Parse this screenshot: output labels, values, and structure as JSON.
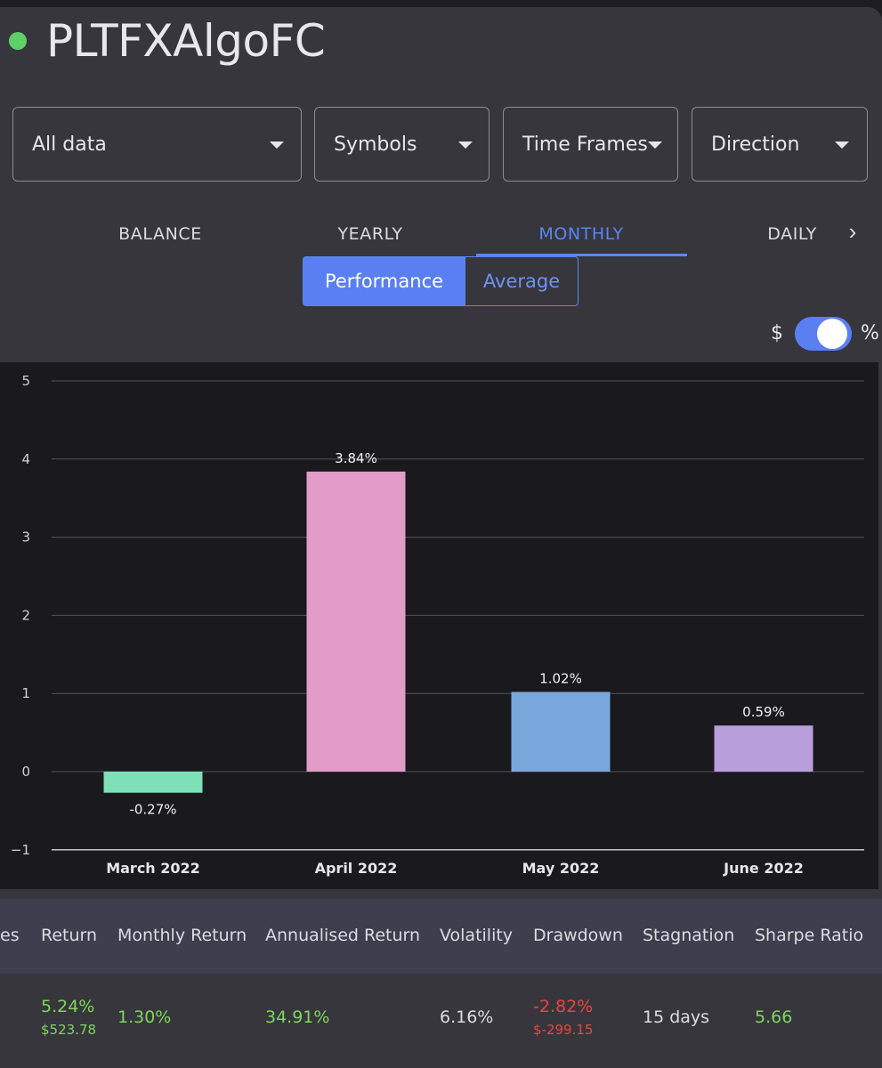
{
  "header": {
    "title": "PLTFXAlgoFC",
    "status_color": "#5fd068"
  },
  "filters": [
    {
      "label": "All data"
    },
    {
      "label": "Symbols"
    },
    {
      "label": "Time Frames"
    },
    {
      "label": "Direction"
    }
  ],
  "tabs": [
    {
      "label": "BALANCE",
      "active": false
    },
    {
      "label": "YEARLY",
      "active": false
    },
    {
      "label": "MONTHLY",
      "active": true
    },
    {
      "label": "DAILY",
      "active": false
    }
  ],
  "tabs_next_icon": "chevron-right-icon",
  "segment": {
    "performance": "Performance",
    "average": "Average",
    "selected": "Performance"
  },
  "currency_toggle": {
    "left_label": "$",
    "right_label": "%",
    "state": "percent"
  },
  "chart_data": {
    "type": "bar",
    "categories": [
      "March 2022",
      "April 2022",
      "May 2022",
      "June 2022"
    ],
    "values": [
      -0.27,
      3.84,
      1.02,
      0.59
    ],
    "data_labels": [
      "-0.27%",
      "3.84%",
      "1.02%",
      "0.59%"
    ],
    "colors": [
      "#7de0b8",
      "#e29cc8",
      "#7ba8dc",
      "#b99edc"
    ],
    "yticks": [
      "5",
      "4",
      "3",
      "2",
      "1",
      "0",
      "−1"
    ],
    "ylim": [
      -1,
      5
    ],
    "grid": true,
    "title": "",
    "xlabel": "",
    "ylabel": ""
  },
  "stats": {
    "headers": [
      "es",
      "Return",
      "Monthly Return",
      "Annualised Return",
      "Volatility",
      "Drawdown",
      "Stagnation",
      "Sharpe Ratio"
    ],
    "return_pct": "5.24%",
    "return_usd": "$523.78",
    "monthly_return": "1.30%",
    "annualised_return": "34.91%",
    "volatility": "6.16%",
    "drawdown_pct": "-2.82%",
    "drawdown_usd": "$-299.15",
    "stagnation": "15 days",
    "sharpe_ratio": "5.66"
  },
  "colors": {
    "accent": "#5a86f0",
    "positive": "#7fd65c",
    "negative": "#e8463f"
  }
}
